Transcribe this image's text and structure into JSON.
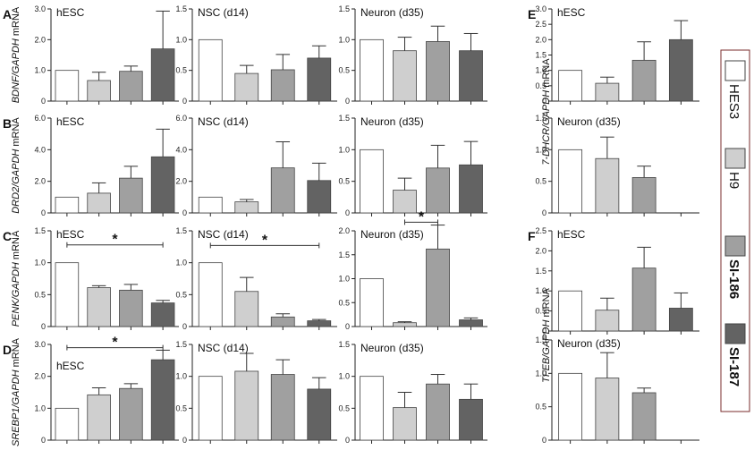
{
  "legend": {
    "entries": [
      {
        "label": "HES3",
        "color": "#ffffff",
        "bold": false
      },
      {
        "label": "H9",
        "color": "#cfcfcf",
        "bold": false
      },
      {
        "label": "SI-186",
        "color": "#a0a0a0",
        "bold": true
      },
      {
        "label": "SI-187",
        "color": "#636363",
        "bold": true
      }
    ]
  },
  "panel_labels": [
    "A",
    "B",
    "C",
    "D",
    "E",
    "F"
  ],
  "chart_data": [
    {
      "id": "A1",
      "type": "bar",
      "panel_label": "A",
      "title": "hESC",
      "ylabel_gene": "BDNF/GAPDH",
      "ylabel_unit": " mRNA",
      "ylim": [
        0,
        3.0
      ],
      "yticks": [
        "0",
        "1.0",
        "2.0",
        "3.0"
      ],
      "yticks_values": [
        0,
        1,
        2,
        3
      ],
      "categories": [
        "HES3",
        "H9",
        "SI-186",
        "SI-187"
      ],
      "values": [
        1.0,
        0.67,
        0.97,
        1.7
      ],
      "errors": [
        0,
        0.27,
        0.17,
        1.23
      ]
    },
    {
      "id": "A2",
      "type": "bar",
      "title": "NSC (d14)",
      "ylim": [
        0,
        1.5
      ],
      "yticks": [
        "0",
        "0.5",
        "1.0",
        "1.5"
      ],
      "yticks_values": [
        0,
        0.5,
        1,
        1.5
      ],
      "categories": [
        "HES3",
        "H9",
        "SI-186",
        "SI-187"
      ],
      "values": [
        1.0,
        0.45,
        0.51,
        0.7
      ],
      "errors": [
        0,
        0.13,
        0.25,
        0.2
      ]
    },
    {
      "id": "A3",
      "type": "bar",
      "title": "Neuron (d35)",
      "ylim": [
        0,
        1.5
      ],
      "yticks": [
        "0",
        "0.5",
        "1.0",
        "1.5"
      ],
      "yticks_values": [
        0,
        0.5,
        1,
        1.5
      ],
      "categories": [
        "HES3",
        "H9",
        "SI-186",
        "SI-187"
      ],
      "values": [
        1.0,
        0.82,
        0.97,
        0.82
      ],
      "errors": [
        0,
        0.22,
        0.25,
        0.28
      ]
    },
    {
      "id": "B1",
      "type": "bar",
      "panel_label": "B",
      "title": "hESC",
      "ylabel_gene": "DRD2/GAPDH",
      "ylabel_unit": " mRNA",
      "ylim": [
        0,
        6.0
      ],
      "yticks": [
        "0",
        "2.0",
        "4.0",
        "6.0"
      ],
      "yticks_values": [
        0,
        2,
        4,
        6
      ],
      "categories": [
        "HES3",
        "H9",
        "SI-186",
        "SI-187"
      ],
      "values": [
        1.0,
        1.25,
        2.2,
        3.55
      ],
      "errors": [
        0,
        0.65,
        0.75,
        1.75
      ]
    },
    {
      "id": "B2",
      "type": "bar",
      "title": "NSC (d14)",
      "ylim": [
        0,
        6.0
      ],
      "yticks": [
        "0",
        "2.0",
        "4.0",
        "6.0"
      ],
      "yticks_values": [
        0,
        2,
        4,
        6
      ],
      "categories": [
        "HES3",
        "H9",
        "SI-186",
        "SI-187"
      ],
      "values": [
        1.0,
        0.7,
        2.85,
        2.05
      ],
      "errors": [
        0,
        0.15,
        1.65,
        1.1
      ]
    },
    {
      "id": "B3",
      "type": "bar",
      "title": "Neuron (d35)",
      "ylim": [
        0,
        1.5
      ],
      "yticks": [
        "0",
        "0.5",
        "1.0",
        "1.5"
      ],
      "yticks_values": [
        0,
        0.5,
        1,
        1.5
      ],
      "categories": [
        "HES3",
        "H9",
        "SI-186",
        "SI-187"
      ],
      "values": [
        1.0,
        0.36,
        0.71,
        0.76
      ],
      "errors": [
        0,
        0.19,
        0.36,
        0.37
      ]
    },
    {
      "id": "C1",
      "type": "bar",
      "panel_label": "C",
      "title": "hESC",
      "ylabel_gene": "PENK/GAPDH",
      "ylabel_unit": " mRNA",
      "ylim": [
        0,
        1.5
      ],
      "yticks": [
        "0",
        "0.5",
        "1.0",
        "1.5"
      ],
      "yticks_values": [
        0,
        0.5,
        1,
        1.5
      ],
      "categories": [
        "HES3",
        "H9",
        "SI-186",
        "SI-187"
      ],
      "values": [
        1.0,
        0.61,
        0.57,
        0.37
      ],
      "errors": [
        0,
        0.03,
        0.09,
        0.04
      ],
      "significance": {
        "from": 0,
        "to": 3,
        "y": 1.28,
        "mark": "*"
      }
    },
    {
      "id": "C2",
      "type": "bar",
      "title": "NSC (d14)",
      "ylim": [
        0,
        1.5
      ],
      "yticks": [
        "0",
        "0.5",
        "1.0",
        "1.5"
      ],
      "yticks_values": [
        0,
        0.5,
        1,
        1.5
      ],
      "categories": [
        "HES3",
        "H9",
        "SI-186",
        "SI-187"
      ],
      "values": [
        1.0,
        0.55,
        0.15,
        0.09
      ],
      "errors": [
        0,
        0.22,
        0.05,
        0.02
      ],
      "significance": {
        "from": 0,
        "to": 3,
        "y": 1.27,
        "mark": "*"
      }
    },
    {
      "id": "C3",
      "type": "bar",
      "title": "Neuron (d35)",
      "ylim": [
        0,
        2.0
      ],
      "yticks": [
        "0",
        "0.5",
        "1.0",
        "1.5",
        "2.0"
      ],
      "yticks_values": [
        0,
        0.5,
        1,
        1.5,
        2
      ],
      "categories": [
        "HES3",
        "H9",
        "SI-186",
        "SI-187"
      ],
      "values": [
        1.0,
        0.08,
        1.62,
        0.14
      ],
      "errors": [
        0,
        0.02,
        0.5,
        0.04
      ],
      "significance": {
        "from": 1,
        "to": 2,
        "y": 2.18,
        "mark": "*"
      }
    },
    {
      "id": "D1",
      "type": "bar",
      "panel_label": "D",
      "title": "hESC",
      "ylabel_gene": "SREBP1/GAPDH",
      "ylabel_unit": " mRNA",
      "ylim": [
        0,
        3.0
      ],
      "yticks": [
        "0",
        "1.0",
        "2.0",
        "3.0"
      ],
      "yticks_values": [
        0,
        1,
        2,
        3
      ],
      "categories": [
        "HES3",
        "H9",
        "SI-186",
        "SI-187"
      ],
      "values": [
        1.0,
        1.42,
        1.62,
        2.52
      ],
      "errors": [
        0,
        0.22,
        0.15,
        0.3
      ],
      "significance": {
        "from": 0,
        "to": 3,
        "y": 2.9,
        "mark": "*"
      }
    },
    {
      "id": "D2",
      "type": "bar",
      "title": "NSC (d14)",
      "ylim": [
        0,
        1.5
      ],
      "yticks": [
        "0",
        "0.5",
        "1.0",
        "1.5"
      ],
      "yticks_values": [
        0,
        0.5,
        1,
        1.5
      ],
      "categories": [
        "HES3",
        "H9",
        "SI-186",
        "SI-187"
      ],
      "values": [
        1.0,
        1.08,
        1.03,
        0.8
      ],
      "errors": [
        0,
        0.28,
        0.23,
        0.18
      ]
    },
    {
      "id": "D3",
      "type": "bar",
      "title": "Neuron (d35)",
      "ylim": [
        0,
        1.5
      ],
      "yticks": [
        "0",
        "0.5",
        "1.0",
        "1.5"
      ],
      "yticks_values": [
        0,
        0.5,
        1,
        1.5
      ],
      "categories": [
        "HES3",
        "H9",
        "SI-186",
        "SI-187"
      ],
      "values": [
        1.0,
        0.51,
        0.88,
        0.64
      ],
      "errors": [
        0,
        0.24,
        0.15,
        0.24
      ]
    },
    {
      "id": "E1",
      "type": "bar",
      "panel_label": "E",
      "title": "hESC",
      "ylabel_gene": "7-DHCR/GAPDH",
      "ylabel_unit": " mRNA",
      "ylim": [
        0,
        3.0
      ],
      "yticks": [
        "0",
        "0.5",
        "1.0",
        "1.5",
        "2.0",
        "2.5",
        "3.0"
      ],
      "yticks_values": [
        0,
        0.5,
        1,
        1.5,
        2,
        2.5,
        3
      ],
      "categories": [
        "HES3",
        "H9",
        "SI-186",
        "SI-187"
      ],
      "values": [
        1.0,
        0.58,
        1.33,
        2.0
      ],
      "errors": [
        0,
        0.2,
        0.6,
        0.62
      ],
      "shared_ylabel": true
    },
    {
      "id": "E2",
      "type": "bar",
      "title": "Neuron (d35)",
      "ylim": [
        0,
        1.5
      ],
      "yticks": [
        "0",
        "0.5",
        "1.0",
        "1.5"
      ],
      "yticks_values": [
        0,
        0.5,
        1,
        1.5
      ],
      "categories": [
        "HES3",
        "H9",
        "SI-186",
        "SI-187"
      ],
      "values": [
        1.0,
        0.86,
        0.56,
        null
      ],
      "errors": [
        0,
        0.34,
        0.18,
        null
      ]
    },
    {
      "id": "F1",
      "type": "bar",
      "panel_label": "F",
      "title": "hESC",
      "ylabel_gene": "TFEB/GAPDH",
      "ylabel_unit": " mRNA",
      "ylim": [
        0,
        2.5
      ],
      "yticks": [
        "0",
        "0.5",
        "1.0",
        "1.5",
        "2.0",
        "2.5"
      ],
      "yticks_values": [
        0,
        0.5,
        1,
        1.5,
        2,
        2.5
      ],
      "categories": [
        "HES3",
        "H9",
        "SI-186",
        "SI-187"
      ],
      "values": [
        1.0,
        0.52,
        1.57,
        0.57
      ],
      "errors": [
        0,
        0.3,
        0.52,
        0.38
      ],
      "shared_ylabel": true
    },
    {
      "id": "F2",
      "type": "bar",
      "title": "Neuron (d35)",
      "ylim": [
        0,
        1.5
      ],
      "yticks": [
        "0",
        "0.5",
        "1.0",
        "1.5"
      ],
      "yticks_values": [
        0,
        0.5,
        1,
        1.5
      ],
      "categories": [
        "HES3",
        "H9",
        "SI-186",
        "SI-187"
      ],
      "values": [
        1.0,
        0.93,
        0.71,
        null
      ],
      "errors": [
        0,
        0.38,
        0.07,
        null
      ]
    }
  ]
}
